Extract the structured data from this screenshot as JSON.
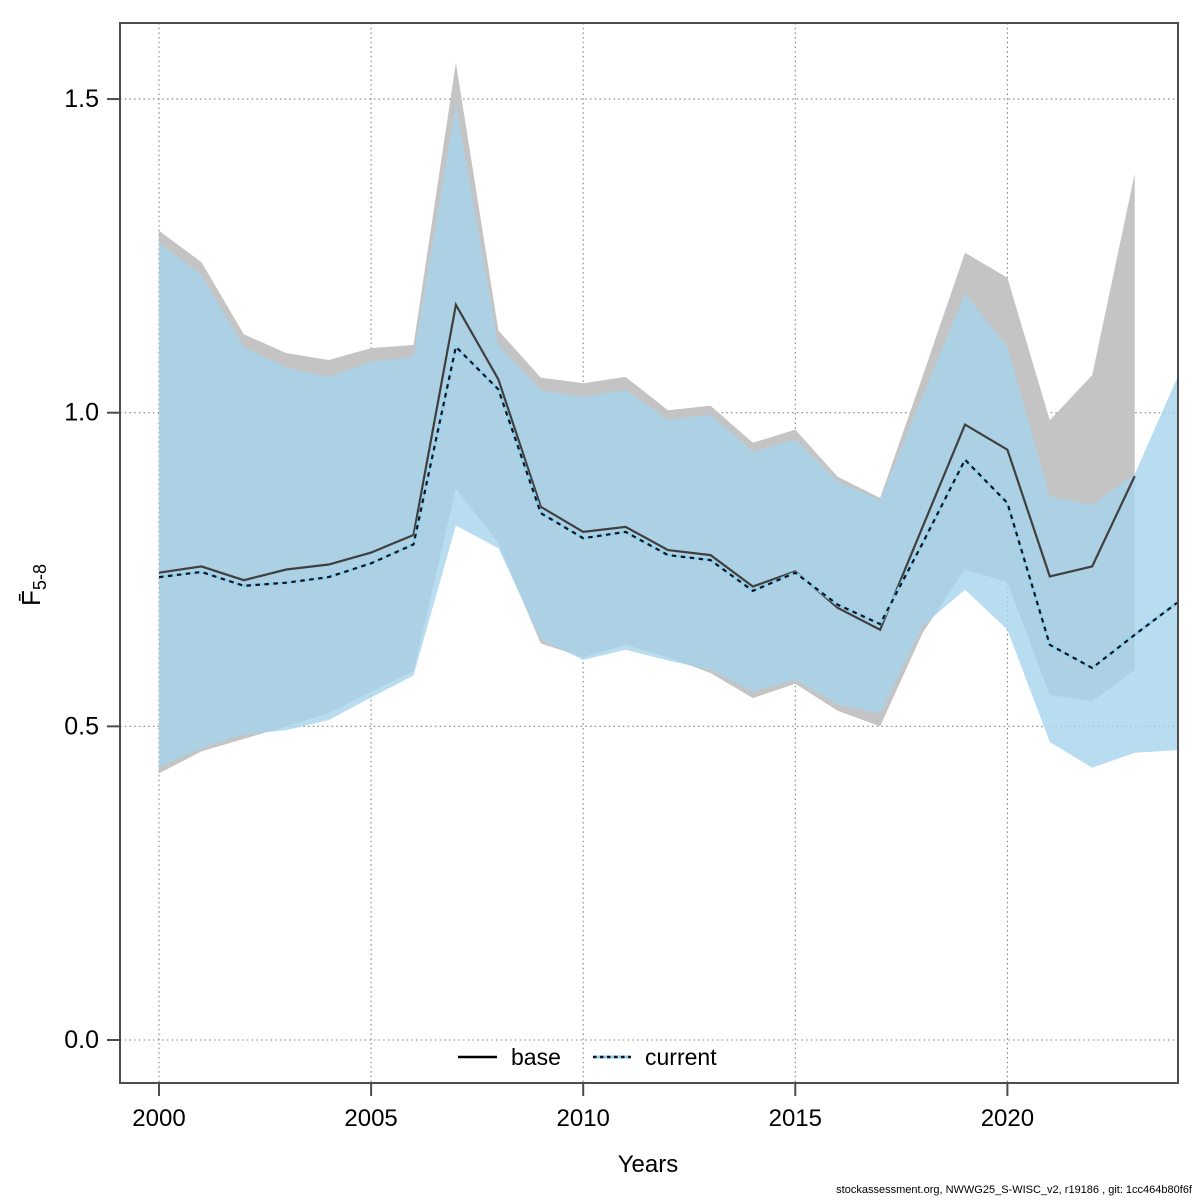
{
  "chart_data": {
    "type": "area",
    "title": "",
    "xlabel": "Years",
    "ylabel_main": "F̄",
    "ylabel_sub": "5-8",
    "xticks": [
      2000,
      2005,
      2010,
      2015,
      2020
    ],
    "yticks": [
      "0.0",
      "0.5",
      "1.0",
      "1.5"
    ],
    "ytick_values": [
      0.0,
      0.5,
      1.0,
      1.5
    ],
    "xlim": [
      1999.08,
      2024.02
    ],
    "ylim": [
      -0.069,
      1.621
    ],
    "grid": true,
    "legend_position": "bottom-center",
    "x": [
      2000,
      2001,
      2002,
      2003,
      2004,
      2005,
      2006,
      2007,
      2008,
      2009,
      2010,
      2011,
      2012,
      2013,
      2014,
      2015,
      2016,
      2017,
      2018,
      2019,
      2020,
      2021,
      2022,
      2023,
      2024
    ],
    "series": [
      {
        "name": "base",
        "line_style": "solid",
        "line_color": "#3f3f3f",
        "band_color": "#c4c4c4",
        "band_opacity": 1.0,
        "values": [
          0.745,
          0.755,
          0.733,
          0.75,
          0.758,
          0.777,
          0.805,
          1.172,
          1.053,
          0.85,
          0.81,
          0.818,
          0.781,
          0.773,
          0.723,
          0.747,
          0.689,
          0.654,
          0.818,
          0.981,
          0.941,
          0.739,
          0.755,
          0.899
        ],
        "band_upper": [
          1.29,
          1.24,
          1.125,
          1.095,
          1.084,
          1.103,
          1.108,
          1.558,
          1.131,
          1.056,
          1.047,
          1.057,
          1.004,
          1.011,
          0.952,
          0.973,
          0.898,
          0.864,
          1.058,
          1.255,
          1.215,
          0.988,
          1.06,
          1.381
        ],
        "band_lower": [
          0.425,
          0.46,
          0.48,
          0.5,
          0.521,
          0.555,
          0.588,
          0.879,
          0.792,
          0.632,
          0.61,
          0.63,
          0.61,
          0.585,
          0.545,
          0.568,
          0.525,
          0.5,
          0.649,
          0.75,
          0.73,
          0.55,
          0.54,
          0.59
        ]
      },
      {
        "name": "current",
        "line_style": "dashed",
        "line_color": "#14141e",
        "line_under_color": "#8ed1ee",
        "band_color": "#a8d4ec",
        "band_opacity": 0.8,
        "values": [
          0.738,
          0.746,
          0.724,
          0.729,
          0.738,
          0.76,
          0.79,
          1.105,
          1.037,
          0.84,
          0.8,
          0.81,
          0.773,
          0.765,
          0.716,
          0.745,
          0.694,
          0.663,
          0.792,
          0.925,
          0.856,
          0.63,
          0.593,
          0.646,
          0.697
        ],
        "band_upper": [
          1.27,
          1.22,
          1.105,
          1.072,
          1.057,
          1.081,
          1.089,
          1.49,
          1.108,
          1.036,
          1.025,
          1.036,
          0.989,
          0.997,
          0.938,
          0.957,
          0.89,
          0.861,
          1.026,
          1.19,
          1.105,
          0.866,
          0.853,
          0.902,
          1.055
        ],
        "band_lower": [
          0.435,
          0.465,
          0.487,
          0.494,
          0.51,
          0.546,
          0.581,
          0.82,
          0.784,
          0.638,
          0.606,
          0.622,
          0.605,
          0.59,
          0.555,
          0.574,
          0.535,
          0.52,
          0.66,
          0.718,
          0.654,
          0.475,
          0.434,
          0.458,
          0.462
        ]
      }
    ],
    "colors": {
      "frame": "#4d4d4d",
      "grid": "#808080",
      "tick": "#4d4d4d",
      "text": "#000000"
    }
  },
  "legend": {
    "base_label": "base",
    "current_label": "current"
  },
  "footer": {
    "text": "stockassessment.org, NWWG25_S-WISC_v2, r19186 , git: 1cc464b80f6f"
  }
}
